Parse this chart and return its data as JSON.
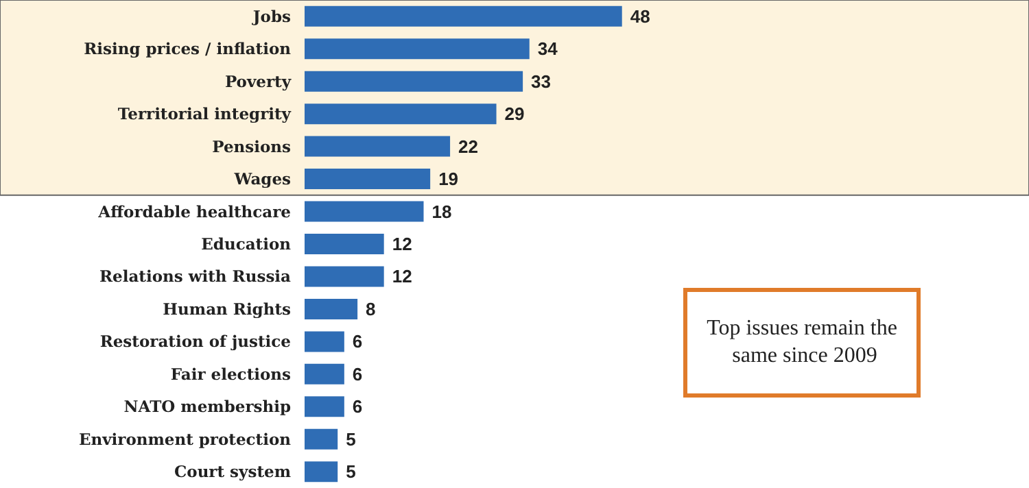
{
  "chart_data": {
    "type": "bar",
    "orientation": "horizontal",
    "categories": [
      "Jobs",
      "Rising prices / inflation",
      "Poverty",
      "Territorial integrity",
      "Pensions",
      "Wages",
      "Affordable healthcare",
      "Education",
      "Relations with Russia",
      "Human Rights",
      "Restoration of justice",
      "Fair elections",
      "NATO membership",
      "Environment protection",
      "Court system"
    ],
    "values": [
      48,
      34,
      33,
      29,
      22,
      19,
      18,
      12,
      12,
      8,
      6,
      6,
      6,
      5,
      5
    ],
    "color": "#2f6db5",
    "data_labels": true,
    "bands": [
      {
        "axis": "y",
        "from": "Jobs",
        "to": "Wages",
        "color": "#fdf3dd"
      }
    ],
    "annotations": [
      "Top issues remain the same since 2009"
    ]
  }
}
